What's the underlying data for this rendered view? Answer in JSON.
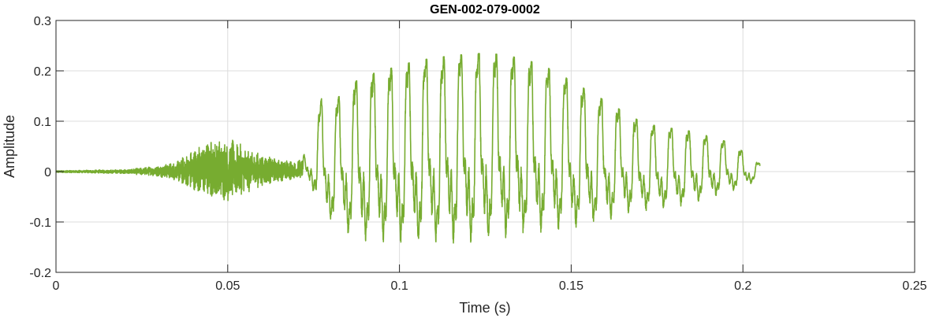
{
  "chart_data": {
    "type": "line",
    "title": "GEN-002-079-0002",
    "xlabel": "Time (s)",
    "ylabel": "Amplitude",
    "xlim": [
      0,
      0.25
    ],
    "ylim": [
      -0.2,
      0.3
    ],
    "x_ticks": [
      0,
      0.05,
      0.1,
      0.15,
      0.2,
      0.25
    ],
    "x_tick_labels": [
      "0",
      "0.05",
      "0.1",
      "0.15",
      "0.2",
      "0.25"
    ],
    "y_ticks": [
      -0.2,
      -0.1,
      0,
      0.1,
      0.2,
      0.3
    ],
    "y_tick_labels": [
      "-0.2",
      "-0.1",
      "0",
      "0.1",
      "0.2",
      "0.3"
    ],
    "grid": true,
    "series": [
      {
        "color": "#77ac30",
        "x": [
          0,
          0.01,
          0.02,
          0.03,
          0.035,
          0.04,
          0.045,
          0.05,
          0.055,
          0.06,
          0.065,
          0.07,
          0.072,
          0.075,
          0.0775,
          0.08,
          0.085,
          0.09,
          0.095,
          0.1,
          0.105,
          0.11,
          0.115,
          0.12,
          0.125,
          0.13,
          0.135,
          0.14,
          0.145,
          0.15,
          0.155,
          0.16,
          0.165,
          0.17,
          0.175,
          0.18,
          0.185,
          0.19,
          0.195,
          0.2,
          0.205
        ],
        "upper": [
          0.002,
          0.003,
          0.004,
          0.012,
          0.02,
          0.045,
          0.065,
          0.07,
          0.05,
          0.035,
          0.025,
          0.02,
          0.03,
          0.08,
          0.15,
          0.13,
          0.17,
          0.19,
          0.2,
          0.21,
          0.22,
          0.225,
          0.23,
          0.233,
          0.235,
          0.232,
          0.225,
          0.215,
          0.2,
          0.18,
          0.16,
          0.14,
          0.12,
          0.1,
          0.09,
          0.085,
          0.08,
          0.07,
          0.06,
          0.04,
          0.015
        ],
        "lower": [
          -0.002,
          -0.003,
          -0.004,
          -0.01,
          -0.018,
          -0.04,
          -0.055,
          -0.06,
          -0.045,
          -0.03,
          -0.02,
          -0.015,
          -0.02,
          -0.05,
          -0.115,
          -0.12,
          -0.15,
          -0.165,
          -0.17,
          -0.172,
          -0.174,
          -0.175,
          -0.174,
          -0.172,
          -0.17,
          -0.165,
          -0.16,
          -0.15,
          -0.145,
          -0.14,
          -0.13,
          -0.12,
          -0.1,
          -0.095,
          -0.09,
          -0.085,
          -0.075,
          -0.065,
          -0.05,
          -0.04,
          -0.015
        ]
      }
    ]
  }
}
